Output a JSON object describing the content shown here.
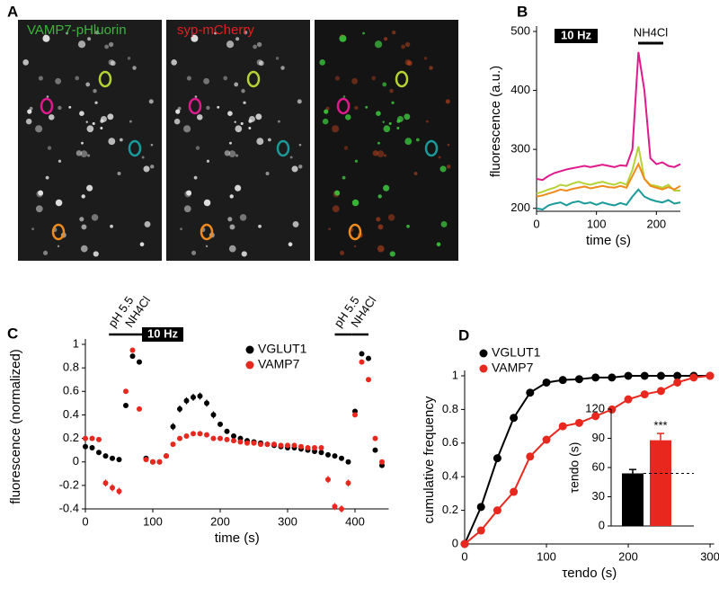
{
  "panel_a": {
    "label": "A",
    "channels": [
      "VAMP7-pHluorin",
      "syp-mCherry"
    ]
  },
  "chart_data": [
    {
      "type": "line",
      "panel_label": "B",
      "xlabel": "time (s)",
      "ylabel": "fluorescence (a.u.)",
      "annotations": [
        "10 Hz",
        "NH4Cl"
      ],
      "x": [
        0,
        10,
        20,
        30,
        40,
        50,
        60,
        70,
        80,
        90,
        100,
        110,
        120,
        130,
        140,
        150,
        160,
        170,
        180,
        190,
        200,
        210,
        220,
        230,
        240
      ],
      "xlim": [
        0,
        240
      ],
      "xticks": [
        0,
        100,
        200
      ],
      "ylim": [
        195,
        500
      ],
      "yticks": [
        200,
        300,
        400,
        500
      ],
      "series": [
        {
          "color": "#e0198c",
          "values": [
            250,
            248,
            255,
            260,
            263,
            266,
            268,
            270,
            272,
            270,
            272,
            274,
            272,
            270,
            273,
            272,
            300,
            465,
            400,
            285,
            275,
            278,
            272,
            270,
            275
          ]
        },
        {
          "color": "#b5d334",
          "values": [
            225,
            228,
            232,
            235,
            240,
            238,
            242,
            245,
            242,
            240,
            243,
            245,
            242,
            240,
            244,
            240,
            265,
            305,
            250,
            240,
            238,
            235,
            240,
            230,
            230
          ]
        },
        {
          "color": "#f08a1c",
          "values": [
            220,
            222,
            225,
            228,
            232,
            230,
            233,
            235,
            237,
            234,
            236,
            238,
            236,
            235,
            238,
            235,
            255,
            275,
            250,
            238,
            235,
            232,
            236,
            232,
            238
          ]
        },
        {
          "color": "#1a9a9a",
          "values": [
            200,
            198,
            205,
            208,
            210,
            205,
            210,
            212,
            208,
            210,
            206,
            210,
            207,
            205,
            209,
            206,
            220,
            232,
            220,
            215,
            212,
            210,
            214,
            208,
            210
          ]
        }
      ]
    },
    {
      "type": "scatter",
      "panel_label": "C",
      "xlabel": "time (s)",
      "ylabel": "fluorescence (normalized)",
      "annotations": [
        "pH 5.5",
        "NH4Cl",
        "10 Hz",
        "pH 5.5",
        "NH4Cl"
      ],
      "legend": "upper right",
      "x": [
        0,
        10,
        20,
        30,
        40,
        50,
        60,
        70,
        80,
        90,
        100,
        110,
        120,
        130,
        140,
        150,
        160,
        170,
        180,
        190,
        200,
        210,
        220,
        230,
        240,
        250,
        260,
        270,
        280,
        290,
        300,
        310,
        320,
        330,
        340,
        350,
        360,
        370,
        380,
        390,
        400,
        410,
        420,
        430,
        440
      ],
      "xlim": [
        0,
        450
      ],
      "xticks": [
        0,
        100,
        200,
        300,
        400
      ],
      "ylim": [
        -0.4,
        1
      ],
      "yticks": [
        -0.4,
        -0.2,
        0,
        0.2,
        0.4,
        0.6,
        0.8,
        1
      ],
      "series": [
        {
          "name": "VGLUT1",
          "color": "#000000",
          "values": [
            0.13,
            0.12,
            0.08,
            0.05,
            0.03,
            0.02,
            0.48,
            0.9,
            0.85,
            0.03,
            0,
            0,
            0.05,
            0.3,
            0.45,
            0.52,
            0.55,
            0.56,
            0.5,
            0.4,
            0.32,
            0.26,
            0.22,
            0.2,
            0.18,
            0.17,
            0.16,
            0.15,
            0.14,
            0.13,
            0.12,
            0.12,
            0.11,
            0.1,
            0.09,
            0.08,
            0.06,
            0.05,
            0.03,
            0,
            0.43,
            0.92,
            0.88,
            0.1,
            -0.03
          ],
          "errors": [
            0.02,
            0.02,
            0.02,
            0.02,
            0.02,
            0.02,
            0.02,
            0.02,
            0.02,
            0.02,
            0.02,
            0.02,
            0.02,
            0.03,
            0.03,
            0.03,
            0.03,
            0.03,
            0.03,
            0.03,
            0.02,
            0.02,
            0.02,
            0.02,
            0.02,
            0.02,
            0.02,
            0.02,
            0.02,
            0.02,
            0.02,
            0.02,
            0.02,
            0.02,
            0.02,
            0.02,
            0.02,
            0.02,
            0.02,
            0.02,
            0.02,
            0.02,
            0.02,
            0.02,
            0.02
          ]
        },
        {
          "name": "VAMP7",
          "color": "#e8281e",
          "values": [
            0.2,
            0.2,
            0.19,
            -0.18,
            -0.22,
            -0.25,
            0.6,
            0.95,
            0.45,
            0.02,
            0,
            0,
            0.05,
            0.15,
            0.2,
            0.22,
            0.24,
            0.24,
            0.23,
            0.2,
            0.2,
            0.19,
            0.18,
            0.17,
            0.16,
            0.16,
            0.15,
            0.15,
            0.15,
            0.14,
            0.14,
            0.14,
            0.13,
            0.12,
            0.12,
            0.12,
            -0.15,
            -0.38,
            -0.4,
            -0.18,
            0.4,
            0.85,
            0.7,
            0.2,
            0
          ],
          "errors": [
            0.02,
            0.02,
            0.02,
            0.03,
            0.03,
            0.03,
            0.02,
            0.02,
            0.02,
            0.02,
            0.02,
            0.02,
            0.02,
            0.02,
            0.02,
            0.02,
            0.02,
            0.02,
            0.02,
            0.02,
            0.02,
            0.02,
            0.02,
            0.02,
            0.02,
            0.02,
            0.02,
            0.02,
            0.02,
            0.02,
            0.02,
            0.02,
            0.02,
            0.02,
            0.02,
            0.02,
            0.03,
            0.03,
            0.03,
            0.03,
            0.02,
            0.02,
            0.02,
            0.02,
            0.02
          ]
        }
      ]
    },
    {
      "type": "line",
      "panel_label": "D",
      "xlabel": "τendo (s)",
      "ylabel": "cumulative frequency",
      "markers": true,
      "legend": "upper left",
      "x": [
        0,
        20,
        40,
        60,
        80,
        100,
        120,
        140,
        160,
        180,
        200,
        220,
        240,
        260,
        280,
        300
      ],
      "xlim": [
        0,
        305
      ],
      "xticks": [
        0,
        100,
        200,
        300
      ],
      "ylim": [
        0,
        1
      ],
      "yticks": [
        0,
        0.2,
        0.4,
        0.6,
        0.8,
        1
      ],
      "series": [
        {
          "name": "VGLUT1",
          "color": "#000000",
          "values": [
            0,
            0.22,
            0.51,
            0.75,
            0.9,
            0.96,
            0.975,
            0.98,
            0.99,
            0.99,
            1,
            1,
            1,
            1,
            1,
            1
          ]
        },
        {
          "name": "VAMP7",
          "color": "#e8281e",
          "values": [
            0,
            0.08,
            0.2,
            0.31,
            0.52,
            0.62,
            0.7,
            0.72,
            0.76,
            0.8,
            0.86,
            0.89,
            0.91,
            0.96,
            0.99,
            1
          ]
        }
      ],
      "inset": {
        "type": "bar",
        "categories": [
          null,
          null
        ],
        "values": [
          54,
          88
        ],
        "errors": [
          4,
          7
        ],
        "colors": [
          "#000000",
          "#e8281e"
        ],
        "ylabel": "τendo (s)",
        "ylim": [
          0,
          120
        ],
        "yticks": [
          0,
          30,
          60,
          90,
          120
        ],
        "annotations": [
          "***"
        ]
      }
    }
  ]
}
